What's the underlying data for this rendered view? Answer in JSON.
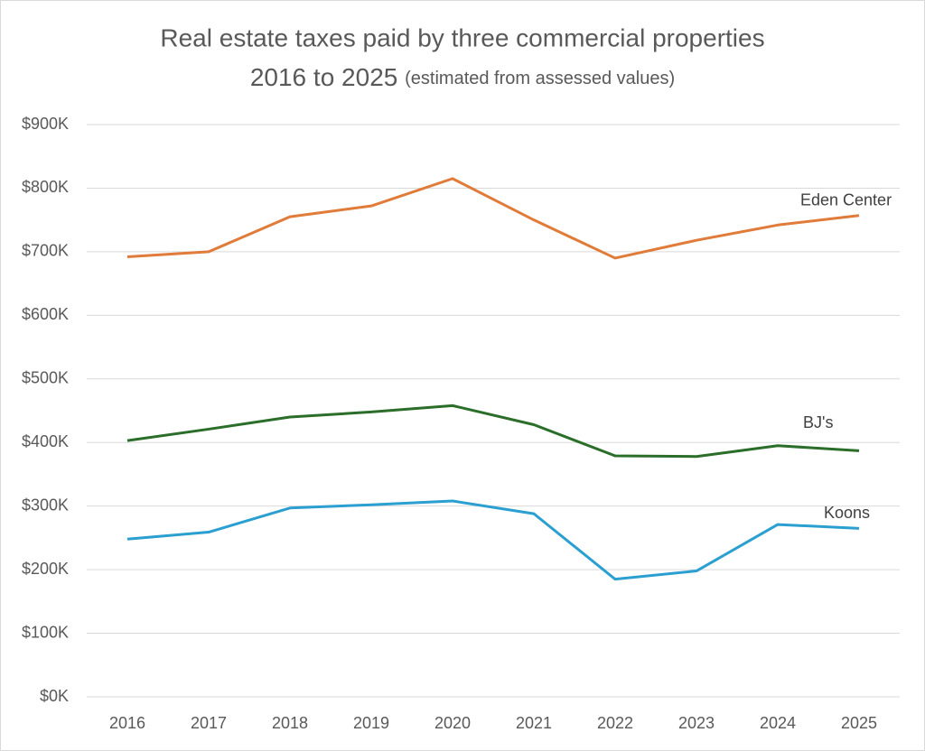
{
  "chart_data": {
    "type": "line",
    "title": "Real estate taxes paid by three commercial properties",
    "subtitle": "2016 to 2025",
    "subtitle_note": "(estimated from assessed values)",
    "categories": [
      "2016",
      "2017",
      "2018",
      "2019",
      "2020",
      "2021",
      "2022",
      "2023",
      "2024",
      "2025"
    ],
    "series": [
      {
        "name": "Eden Center",
        "color": "#e07b39",
        "values": [
          692000,
          700000,
          755000,
          772000,
          815000,
          750000,
          690000,
          718000,
          742000,
          757000
        ]
      },
      {
        "name": "BJ's",
        "color": "#2a6e2a",
        "values": [
          403000,
          421000,
          440000,
          448000,
          458000,
          428000,
          379000,
          378000,
          395000,
          387000
        ]
      },
      {
        "name": "Koons",
        "color": "#2a9fd0",
        "values": [
          248000,
          259000,
          297000,
          302000,
          308000,
          288000,
          185000,
          198000,
          271000,
          265000
        ]
      }
    ],
    "ylim": [
      0,
      900000
    ],
    "yticks": [
      {
        "value": 0,
        "label": "$0K"
      },
      {
        "value": 100000,
        "label": "$100K"
      },
      {
        "value": 200000,
        "label": "$200K"
      },
      {
        "value": 300000,
        "label": "$300K"
      },
      {
        "value": 400000,
        "label": "$400K"
      },
      {
        "value": 500000,
        "label": "$500K"
      },
      {
        "value": 600000,
        "label": "$600K"
      },
      {
        "value": 700000,
        "label": "$700K"
      },
      {
        "value": 800000,
        "label": "$800K"
      },
      {
        "value": 900000,
        "label": "$900K"
      }
    ],
    "grid": true
  }
}
